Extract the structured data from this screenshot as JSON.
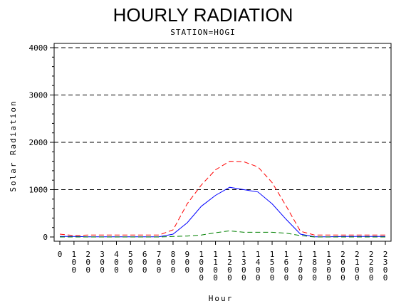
{
  "chart_data": {
    "type": "line",
    "title": "HOURLY RADIATION",
    "subtitle": "STATION=HOGI",
    "xlabel": "Hour",
    "ylabel": "Solar Radiation",
    "x": [
      0,
      100,
      200,
      300,
      400,
      500,
      600,
      700,
      800,
      900,
      1000,
      1100,
      1200,
      1300,
      1400,
      1500,
      1600,
      1700,
      1800,
      1900,
      2000,
      2100,
      2200,
      2300
    ],
    "x_tick_labels": [
      "0",
      "100",
      "200",
      "300",
      "400",
      "500",
      "600",
      "700",
      "800",
      "900",
      "1000",
      "1100",
      "1200",
      "1300",
      "1400",
      "1500",
      "1600",
      "1700",
      "1800",
      "1900",
      "2000",
      "2100",
      "2200",
      "2300"
    ],
    "ylim": [
      0,
      4000
    ],
    "y_ticks": [
      0,
      1000,
      2000,
      3000,
      4000
    ],
    "grid": "horizontal dashed",
    "series": [
      {
        "color": "#ff0000",
        "style": "dashed",
        "values": [
          60,
          30,
          40,
          40,
          40,
          40,
          40,
          40,
          150,
          700,
          1100,
          1420,
          1600,
          1590,
          1480,
          1150,
          650,
          120,
          40,
          40,
          40,
          40,
          40,
          40
        ]
      },
      {
        "color": "#0000ff",
        "style": "solid",
        "values": [
          10,
          10,
          5,
          5,
          5,
          5,
          5,
          5,
          60,
          300,
          650,
          880,
          1050,
          1000,
          950,
          700,
          370,
          60,
          5,
          5,
          10,
          10,
          10,
          10
        ]
      },
      {
        "color": "#008000",
        "style": "dashed",
        "values": [
          0,
          0,
          0,
          0,
          0,
          0,
          0,
          0,
          10,
          20,
          40,
          90,
          130,
          100,
          100,
          100,
          80,
          30,
          0,
          0,
          0,
          0,
          0,
          0
        ]
      }
    ]
  }
}
